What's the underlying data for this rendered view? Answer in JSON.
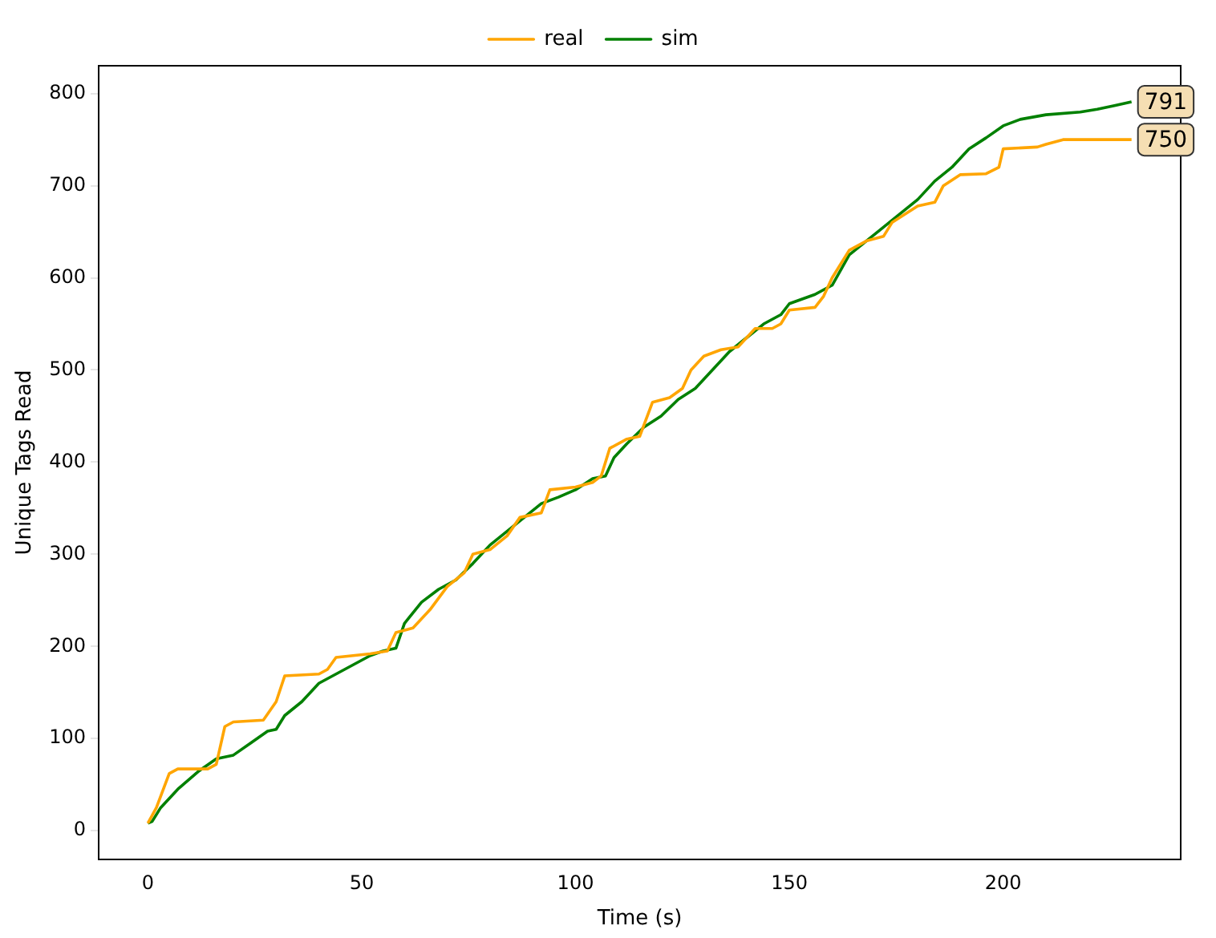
{
  "chart_data": {
    "type": "line",
    "xlabel": "Time (s)",
    "ylabel": "Unique Tags Read",
    "xlim": [
      -11.5,
      241.5
    ],
    "ylim": [
      -31.2,
      830.2
    ],
    "xticks": [
      0,
      50,
      100,
      150,
      200
    ],
    "yticks": [
      0,
      100,
      200,
      300,
      400,
      500,
      600,
      700,
      800
    ],
    "grid": false,
    "legend": "top",
    "marker": "none",
    "line_style": "solid",
    "series": [
      {
        "name": "real",
        "color": "#ffa500",
        "x": [
          0,
          2,
          5,
          7,
          14,
          16,
          18,
          20,
          27,
          30,
          32,
          40,
          42,
          44,
          52,
          56,
          58,
          62,
          66,
          70,
          74,
          76,
          80,
          84,
          87,
          92,
          94,
          100,
          104,
          106,
          108,
          112,
          115,
          118,
          122,
          125,
          127,
          130,
          134,
          138,
          142,
          146,
          148,
          150,
          156,
          158,
          160,
          164,
          168,
          172,
          174,
          180,
          184,
          186,
          190,
          196,
          199,
          200,
          208,
          210,
          214,
          230
        ],
        "values": [
          8,
          25,
          62,
          67,
          67,
          72,
          113,
          118,
          120,
          140,
          168,
          170,
          175,
          188,
          192,
          195,
          215,
          220,
          240,
          265,
          280,
          300,
          305,
          320,
          340,
          345,
          370,
          373,
          378,
          385,
          415,
          425,
          428,
          465,
          470,
          480,
          500,
          515,
          522,
          525,
          545,
          545,
          550,
          565,
          568,
          580,
          600,
          630,
          640,
          645,
          660,
          678,
          682,
          700,
          712,
          713,
          720,
          740,
          742,
          745,
          750,
          750
        ]
      },
      {
        "name": "sim",
        "color": "#008000",
        "x": [
          0,
          1,
          3,
          7,
          12,
          16,
          20,
          24,
          28,
          30,
          32,
          36,
          40,
          44,
          48,
          52,
          55,
          58,
          60,
          64,
          68,
          72,
          76,
          80,
          84,
          88,
          92,
          96,
          100,
          104,
          107,
          109,
          112,
          116,
          120,
          124,
          128,
          132,
          136,
          140,
          144,
          148,
          150,
          156,
          160,
          164,
          168,
          172,
          176,
          180,
          184,
          188,
          192,
          196,
          200,
          204,
          210,
          218,
          222,
          226,
          230
        ],
        "values": [
          8,
          10,
          25,
          45,
          65,
          78,
          82,
          95,
          108,
          110,
          125,
          140,
          160,
          170,
          180,
          190,
          195,
          198,
          225,
          248,
          262,
          272,
          290,
          310,
          325,
          340,
          355,
          362,
          370,
          382,
          385,
          405,
          420,
          438,
          450,
          468,
          480,
          500,
          520,
          535,
          550,
          560,
          572,
          582,
          592,
          625,
          640,
          655,
          670,
          685,
          705,
          720,
          740,
          752,
          765,
          772,
          777,
          780,
          783,
          787,
          791
        ]
      }
    ],
    "annotations": [
      {
        "text": "791",
        "x": 230,
        "y": 791
      },
      {
        "text": "750",
        "x": 230,
        "y": 750
      }
    ]
  }
}
